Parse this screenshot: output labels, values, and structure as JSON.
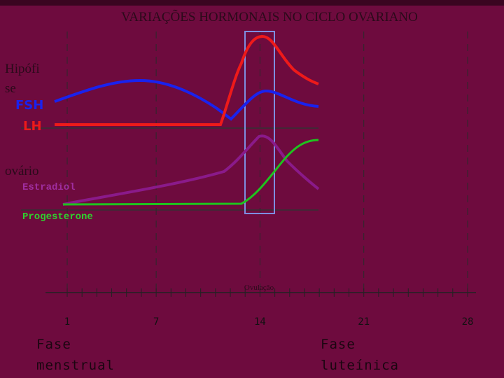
{
  "title": "VARIAÇÕES HORMONAIS NO CICLO OVARIANO",
  "labels": {
    "pituitary": [
      "Hipófi",
      "se"
    ],
    "fsh": "FSH",
    "lh": "LH",
    "ovary": "ovário",
    "estradiol": "Estradiol",
    "progesterone": "Progesterone",
    "ovulation": "Ovulação"
  },
  "x_axis": {
    "ticks": [
      1,
      7,
      14,
      21,
      28
    ]
  },
  "phases": {
    "menstrual": [
      "Fase",
      "menstrual"
    ],
    "luteal": [
      "Fase",
      "luteínica"
    ]
  }
}
